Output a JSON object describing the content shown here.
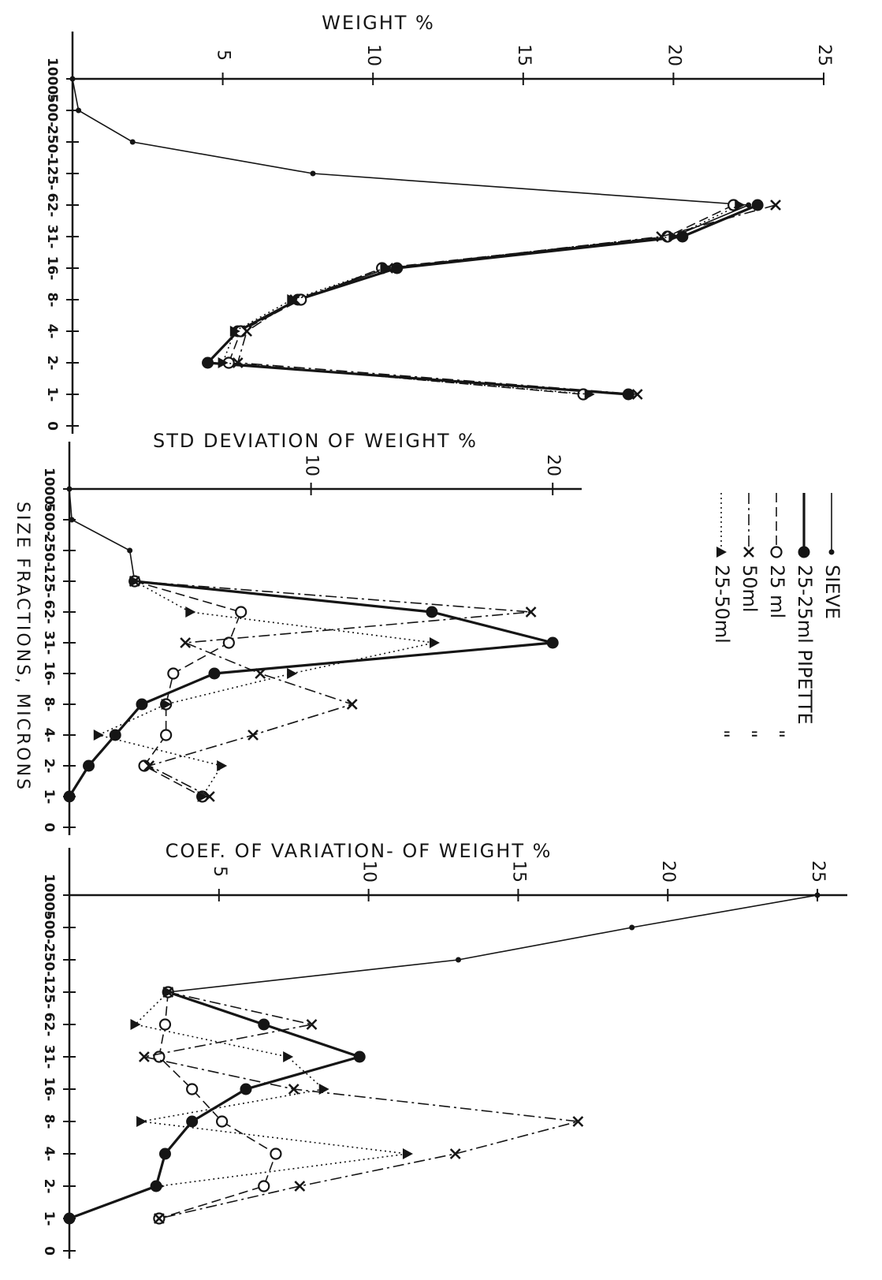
{
  "chart_data": [
    {
      "type": "line",
      "title": "WEIGHT %",
      "categories": [
        "1000-",
        "500-",
        "250-",
        "125-",
        "62-",
        "31-",
        "16-",
        "8-",
        "4-",
        "2-",
        "1-",
        "0"
      ],
      "ylim": [
        0,
        25
      ],
      "yticks": [
        5,
        10,
        15,
        20,
        25
      ],
      "series": [
        {
          "values": [
            0,
            0.2,
            2,
            8,
            22.5,
            20,
            10.5,
            7.5,
            5.5,
            4.5,
            18.5,
            null
          ]
        },
        {
          "values": [
            null,
            null,
            null,
            null,
            22.8,
            20.3,
            10.8,
            7.5,
            5.5,
            4.5,
            18.5,
            null
          ]
        },
        {
          "values": [
            null,
            null,
            null,
            null,
            22,
            19.8,
            10.3,
            7.6,
            5.6,
            5.2,
            17,
            null
          ]
        },
        {
          "values": [
            null,
            null,
            null,
            null,
            23.4,
            19.6,
            10.5,
            7.4,
            5.8,
            5.5,
            18.8,
            null
          ]
        },
        {
          "values": [
            null,
            null,
            null,
            null,
            22.2,
            20,
            10.4,
            7.3,
            5.4,
            5,
            17.2,
            null
          ]
        }
      ]
    },
    {
      "type": "line",
      "title": "STD DEVIATION OF WEIGHT %",
      "categories": [
        "1000-",
        "500-",
        "250-",
        "125-",
        "62-",
        "31-",
        "16-",
        "8-",
        "4-",
        "2-",
        "1-",
        "0"
      ],
      "ylim": [
        0,
        21.2
      ],
      "yticks": [
        10,
        20
      ],
      "series": [
        {
          "values": [
            0,
            0.1,
            2.5,
            2.7,
            null,
            null,
            null,
            null,
            null,
            null,
            null,
            null
          ]
        },
        {
          "values": [
            null,
            null,
            null,
            2.7,
            15,
            20,
            6,
            3,
            1.9,
            0.8,
            0,
            null
          ]
        },
        {
          "values": [
            null,
            null,
            null,
            2.7,
            7.1,
            6.6,
            4.3,
            4,
            4,
            3.1,
            5.5,
            null
          ]
        },
        {
          "values": [
            null,
            null,
            null,
            2.7,
            19.1,
            4.8,
            7.9,
            11.7,
            7.6,
            3.3,
            5.8,
            null
          ]
        },
        {
          "values": [
            null,
            null,
            null,
            2.7,
            5,
            15.1,
            9.2,
            4,
            1.2,
            6.3,
            5.5,
            null
          ]
        }
      ]
    },
    {
      "type": "line",
      "title": "COEF. OF VARIATION- OF WEIGHT %",
      "categories": [
        "1000-",
        "500-",
        "250-",
        "125-",
        "62-",
        "31-",
        "16-",
        "8-",
        "4-",
        "2-",
        "1-",
        "0"
      ],
      "ylim": [
        0,
        26
      ],
      "yticks": [
        5,
        10,
        15,
        20,
        25
      ],
      "series": [
        {
          "values": [
            25,
            18.8,
            13,
            3.3,
            null,
            null,
            null,
            null,
            null,
            null,
            null,
            null
          ]
        },
        {
          "values": [
            null,
            null,
            null,
            3.3,
            6.5,
            9.7,
            5.9,
            4.1,
            3.2,
            2.9,
            0,
            null
          ]
        },
        {
          "values": [
            null,
            null,
            null,
            3.3,
            3.2,
            3,
            4.1,
            5.1,
            6.9,
            6.5,
            3,
            null
          ]
        },
        {
          "values": [
            null,
            null,
            null,
            3.3,
            8.1,
            2.5,
            7.5,
            17,
            12.9,
            7.7,
            3,
            null
          ]
        },
        {
          "values": [
            null,
            null,
            null,
            3.3,
            2.2,
            7.3,
            8.5,
            2.4,
            11.3,
            3,
            null,
            null
          ]
        }
      ]
    }
  ],
  "x_label": "SIZE FRACTIONS, MICRONS",
  "legend": {
    "entries": [
      {
        "label": "SIEVE",
        "dash": "solid",
        "marker": "dot",
        "color": "#151515"
      },
      {
        "label": "25-25ml PIPETTE",
        "dash": "solid-bold",
        "marker": "big-dot",
        "color": "#151515"
      },
      {
        "label": "25 ml",
        "ditto": "\"",
        "dash": "dashed",
        "marker": "circle",
        "color": "#151515"
      },
      {
        "label": "50ml",
        "ditto": "\"",
        "dash": "dashdot",
        "marker": "x",
        "color": "#151515"
      },
      {
        "label": "25-50ml",
        "ditto": "\"",
        "dash": "dotted",
        "marker": "triangle",
        "color": "#151515"
      }
    ]
  }
}
